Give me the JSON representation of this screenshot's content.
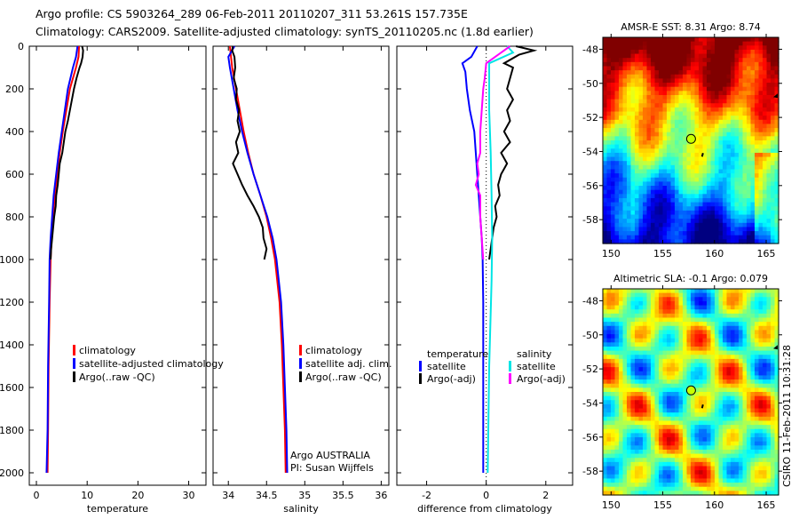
{
  "title": {
    "line1": "Argo profile: CS 5903264_289 06-Feb-2011 20110207_311 53.261S 157.735E",
    "line2": "Climatology: CARS2009. Satellite-adjusted climatology: synTS_20110205.nc (1.8d earlier)"
  },
  "side_stamp": "CSIRO 11-Feb-2011 10:31:28",
  "colors": {
    "climatology": "#ff0000",
    "satellite": "#0000ff",
    "argo": "#000000",
    "sal_satellite": "#00e5e5",
    "sal_argo": "#ff00ff"
  },
  "chart_data": [
    {
      "type": "line",
      "xlabel": "temperature",
      "ylim": [
        2050,
        0
      ],
      "xlim": [
        -1.4,
        33.4
      ],
      "xticks": [
        0,
        10,
        20,
        30
      ],
      "yticks": [
        0,
        200,
        400,
        600,
        800,
        1000,
        1200,
        1400,
        1600,
        1800,
        2000
      ],
      "legend_position": "lower-center",
      "series": [
        {
          "name": "climatology",
          "color": "#ff0000",
          "depth": [
            0,
            50,
            100,
            200,
            300,
            400,
            500,
            600,
            700,
            800,
            900,
            1000,
            1200,
            1500,
            1800,
            2000
          ],
          "values": [
            8.4,
            8.3,
            7.8,
            6.6,
            5.9,
            5.2,
            4.6,
            4.1,
            3.6,
            3.3,
            3.0,
            2.8,
            2.6,
            2.4,
            2.3,
            2.2
          ]
        },
        {
          "name": "satellite-adjusted climatology",
          "color": "#0000ff",
          "depth": [
            0,
            50,
            100,
            200,
            300,
            400,
            500,
            600,
            700,
            800,
            900,
            1000,
            1200,
            1500,
            1800,
            2000
          ],
          "values": [
            8.1,
            7.8,
            7.2,
            6.2,
            5.6,
            5.0,
            4.4,
            3.9,
            3.4,
            3.1,
            2.8,
            2.6,
            2.5,
            2.3,
            2.2,
            2.0
          ]
        },
        {
          "name": "Argo(..raw -QC)",
          "color": "#000000",
          "depth": [
            0,
            20,
            50,
            80,
            100,
            150,
            200,
            250,
            300,
            350,
            400,
            450,
            500,
            550,
            600,
            650,
            700,
            750,
            800,
            850,
            900,
            950,
            1000
          ],
          "values": [
            9.0,
            9.2,
            9.1,
            8.8,
            8.5,
            7.9,
            7.4,
            7.0,
            6.6,
            6.2,
            5.7,
            5.4,
            5.1,
            4.6,
            4.4,
            4.2,
            3.9,
            3.8,
            3.5,
            3.3,
            3.1,
            2.9,
            2.8
          ]
        }
      ]
    },
    {
      "type": "line",
      "xlabel": "salinity",
      "ylim": [
        2050,
        0
      ],
      "xlim": [
        33.8,
        36.1
      ],
      "xticks": [
        34,
        34.5,
        35,
        35.5,
        36
      ],
      "legend_position": "lower-right",
      "annotation": [
        "Argo AUSTRALIA",
        "PI: Susan Wijffels"
      ],
      "series": [
        {
          "name": "climatology",
          "color": "#ff0000",
          "depth": [
            0,
            100,
            200,
            300,
            400,
            500,
            600,
            700,
            800,
            900,
            1000,
            1200,
            1400,
            1600,
            1800,
            2000
          ],
          "values": [
            34.02,
            34.05,
            34.1,
            34.15,
            34.2,
            34.26,
            34.33,
            34.42,
            34.5,
            34.56,
            34.61,
            34.67,
            34.7,
            34.72,
            34.74,
            34.75
          ]
        },
        {
          "name": "satellite adj. clim.",
          "color": "#0000ff",
          "depth": [
            0,
            50,
            100,
            200,
            300,
            400,
            500,
            600,
            700,
            800,
            900,
            1000,
            1200,
            1400,
            1600,
            1800,
            2000
          ],
          "values": [
            34.08,
            34.0,
            34.02,
            34.07,
            34.12,
            34.18,
            34.25,
            34.33,
            34.42,
            34.51,
            34.58,
            34.63,
            34.69,
            34.72,
            34.74,
            34.76,
            34.77
          ]
        },
        {
          "name": "Argo(..raw -QC)",
          "color": "#000000",
          "depth": [
            0,
            20,
            50,
            100,
            150,
            200,
            250,
            300,
            350,
            400,
            450,
            500,
            550,
            600,
            650,
            700,
            750,
            800,
            850,
            900,
            950,
            1000
          ],
          "values": [
            34.06,
            34.05,
            34.08,
            34.09,
            34.07,
            34.11,
            34.1,
            34.14,
            34.12,
            34.15,
            34.1,
            34.13,
            34.06,
            34.12,
            34.18,
            34.25,
            34.33,
            34.4,
            34.45,
            34.46,
            34.5,
            34.47
          ]
        }
      ]
    },
    {
      "type": "line",
      "xlabel": "difference from climatology",
      "ylim": [
        2050,
        0
      ],
      "xlim": [
        -3.0,
        2.9
      ],
      "xticks": [
        -2,
        0,
        2
      ],
      "legend_position": "lower-center",
      "legend_headers": [
        "temperature",
        "salinity"
      ],
      "series": [
        {
          "name": "satellite",
          "group": "temperature",
          "color": "#0000ff",
          "depth": [
            0,
            50,
            80,
            120,
            200,
            300,
            400,
            500,
            600,
            700,
            800,
            900,
            1000,
            1200,
            1500,
            2000
          ],
          "values": [
            -0.3,
            -0.5,
            -0.8,
            -0.7,
            -0.65,
            -0.55,
            -0.4,
            -0.35,
            -0.3,
            -0.25,
            -0.2,
            -0.15,
            -0.12,
            -0.1,
            -0.1,
            -0.1
          ]
        },
        {
          "name": "Argo(-adj)",
          "group": "temperature",
          "color": "#000000",
          "depth": [
            0,
            20,
            40,
            80,
            100,
            150,
            200,
            250,
            300,
            350,
            400,
            450,
            500,
            550,
            600,
            650,
            700,
            750,
            800,
            850,
            900,
            950,
            1000
          ],
          "values": [
            1.0,
            1.6,
            1.1,
            0.6,
            0.9,
            0.8,
            0.7,
            0.9,
            0.7,
            0.8,
            0.6,
            0.8,
            0.5,
            0.7,
            0.5,
            0.4,
            0.45,
            0.3,
            0.35,
            0.25,
            0.2,
            0.15,
            0.1
          ]
        },
        {
          "name": "satellite",
          "group": "salinity",
          "color": "#00e5e5",
          "depth": [
            0,
            30,
            80,
            150,
            300,
            500,
            700,
            900,
            1100,
            1500,
            2000
          ],
          "values": [
            0.7,
            0.9,
            0.1,
            0.1,
            0.1,
            0.15,
            0.18,
            0.2,
            0.18,
            0.1,
            0.05
          ]
        },
        {
          "name": "Argo(-adj)",
          "group": "salinity",
          "color": "#ff00ff",
          "depth": [
            0,
            30,
            80,
            150,
            200,
            300,
            400,
            500,
            550,
            600,
            650,
            700,
            800,
            900,
            1000
          ],
          "values": [
            0.8,
            0.5,
            0.0,
            -0.05,
            -0.1,
            -0.15,
            -0.2,
            -0.2,
            -0.3,
            -0.25,
            -0.35,
            -0.2,
            -0.2,
            -0.15,
            -0.1
          ]
        }
      ]
    },
    {
      "type": "heatmap",
      "title": "AMSR-E SST: 8.31  Argo: 8.74",
      "xlim": [
        149.2,
        166.2
      ],
      "ylim": [
        -59.4,
        -47.3
      ],
      "xticks": [
        150,
        155,
        160,
        165
      ],
      "yticks": [
        -48,
        -50,
        -52,
        -54,
        -56,
        -58
      ],
      "argo_position": {
        "lon": 157.735,
        "lat": -53.261
      }
    },
    {
      "type": "heatmap",
      "title": "Altimetric SLA: -0.1  Argo: 0.079",
      "xlim": [
        149.2,
        166.2
      ],
      "ylim": [
        -59.4,
        -47.3
      ],
      "xticks": [
        150,
        155,
        160,
        165
      ],
      "yticks": [
        -48,
        -50,
        -52,
        -54,
        -56,
        -58
      ],
      "argo_position": {
        "lon": 157.735,
        "lat": -53.261
      }
    }
  ]
}
